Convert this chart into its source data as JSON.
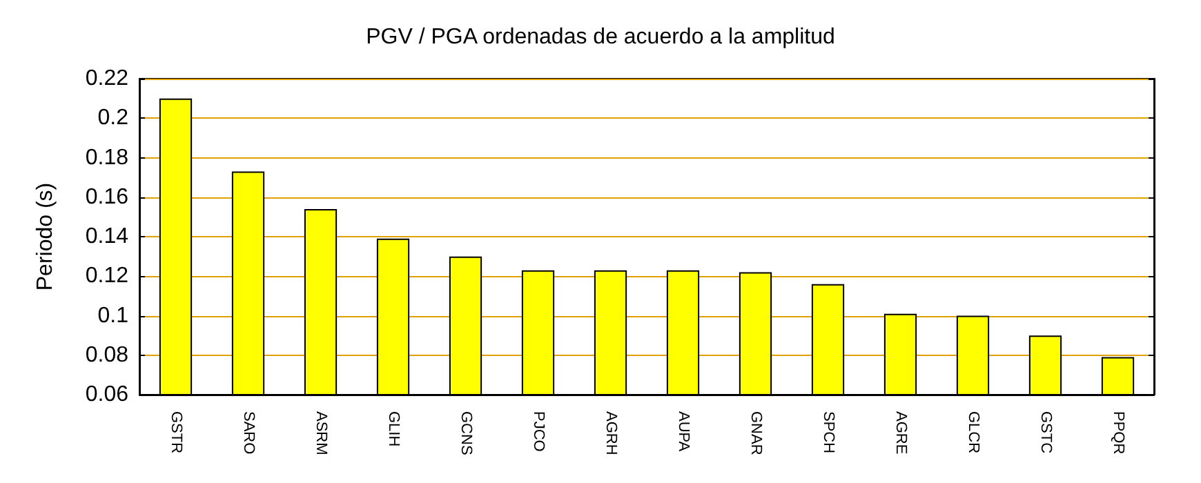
{
  "chart_data": {
    "type": "bar",
    "title": "PGV / PGA ordenadas de acuerdo a la amplitud",
    "ylabel": "Periodo (s)",
    "categories": [
      "GSTR",
      "SARO",
      "ASRM",
      "GLIH",
      "GCNS",
      "PJCO",
      "AGRH",
      "AUPA",
      "GNAR",
      "SPCH",
      "AGRE",
      "GLCR",
      "GSTC",
      "PPQR"
    ],
    "values": [
      0.21,
      0.173,
      0.154,
      0.139,
      0.13,
      0.123,
      0.123,
      0.123,
      0.122,
      0.116,
      0.101,
      0.1,
      0.09,
      0.079
    ],
    "color": "#ffff00",
    "ylim": [
      0.06,
      0.22
    ],
    "yticks": [
      0.06,
      0.08,
      0.1,
      0.12,
      0.14,
      0.16,
      0.18,
      0.2,
      0.22
    ],
    "grid": "y"
  }
}
